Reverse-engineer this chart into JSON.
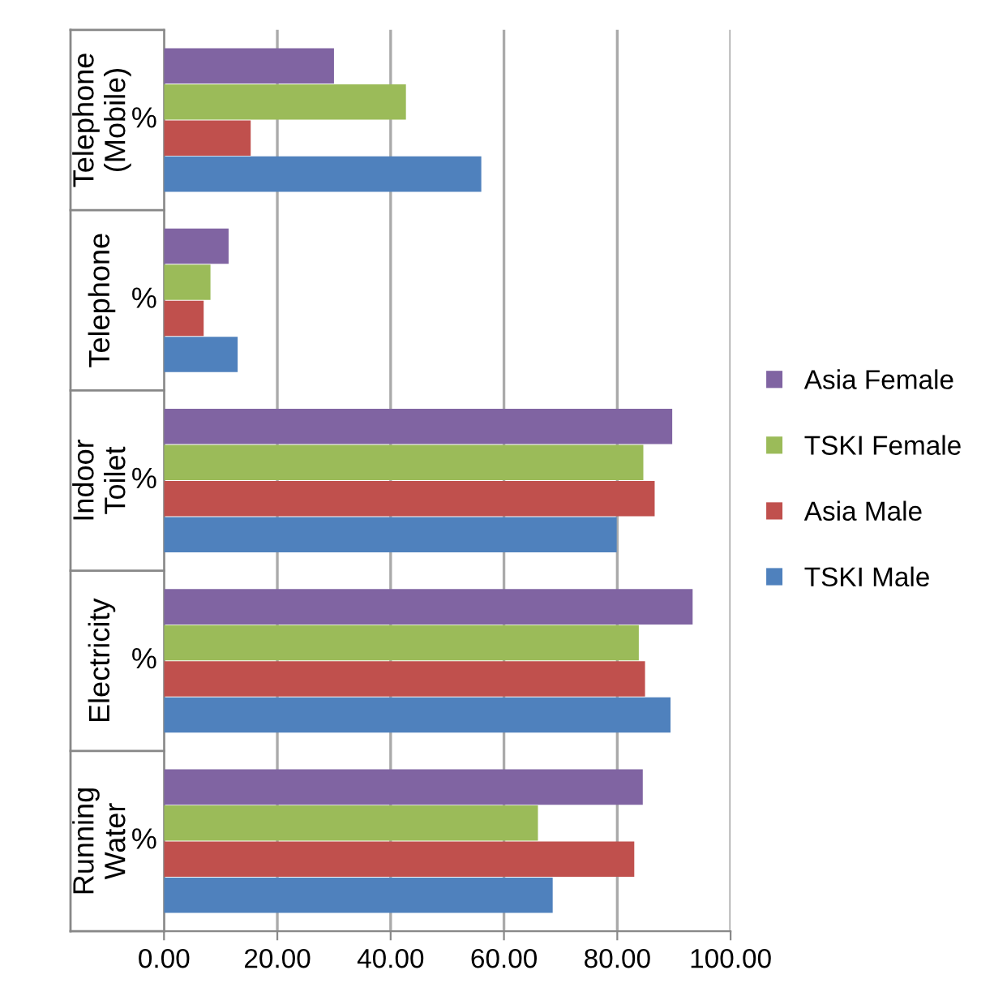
{
  "chart_data": {
    "type": "bar",
    "orientation": "horizontal",
    "categories": [
      "Telephone\n(Mobile)",
      "Telephone",
      "Indoor\nToilet",
      "Electricity",
      "Running\nWater"
    ],
    "series": [
      {
        "name": "TSKI Male",
        "color": "#4f81bd",
        "values": [
          56,
          13,
          79.9,
          89.4,
          68.6
        ]
      },
      {
        "name": "Asia Male",
        "color": "#c0504d",
        "values": [
          15.3,
          7,
          86.6,
          84.9,
          83
        ]
      },
      {
        "name": "TSKI Female",
        "color": "#9bbb59",
        "values": [
          42.7,
          8.2,
          84.6,
          83.8,
          66
        ]
      },
      {
        "name": "Asia Female",
        "color": "#8064a2",
        "values": [
          30,
          11.4,
          89.7,
          93.3,
          84.5
        ]
      }
    ],
    "xlim": [
      0,
      100
    ],
    "xticks": [
      {
        "value": 0,
        "label": "0.00"
      },
      {
        "value": 20,
        "label": "20.00"
      },
      {
        "value": 40,
        "label": "40.00"
      },
      {
        "value": 60,
        "label": "60.00"
      },
      {
        "value": 80,
        "label": "80.00"
      },
      {
        "value": 100,
        "label": "100.00"
      }
    ],
    "annotations": [
      "%",
      "%",
      "%",
      "%",
      "%"
    ],
    "grid": "x",
    "legend": "right"
  }
}
